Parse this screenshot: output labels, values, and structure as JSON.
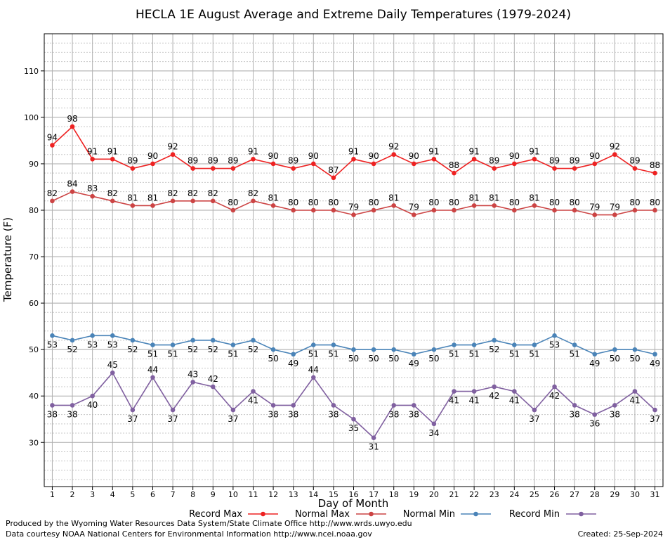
{
  "chart_data": {
    "type": "line",
    "title": "HECLA 1E August Average and Extreme Daily Temperatures (1979-2024)",
    "xlabel": "Day of Month",
    "ylabel": "Temperature (F)",
    "xlim": [
      0.6,
      31.4
    ],
    "ylim": [
      20.5,
      118
    ],
    "y_ticks": [
      30,
      40,
      50,
      60,
      70,
      80,
      90,
      100,
      110
    ],
    "x": [
      1,
      2,
      3,
      4,
      5,
      6,
      7,
      8,
      9,
      10,
      11,
      12,
      13,
      14,
      15,
      16,
      17,
      18,
      19,
      20,
      21,
      22,
      23,
      24,
      25,
      26,
      27,
      28,
      29,
      30,
      31
    ],
    "grid": true,
    "legend_position": "bottom",
    "series": [
      {
        "name": "Record Max",
        "color": "#ee2222",
        "label_position": "above",
        "values": [
          94,
          98,
          91,
          91,
          89,
          90,
          92,
          89,
          89,
          89,
          91,
          90,
          89,
          90,
          87,
          91,
          90,
          92,
          90,
          91,
          88,
          91,
          89,
          90,
          91,
          89,
          89,
          90,
          92,
          89,
          88
        ]
      },
      {
        "name": "Normal Max",
        "color": "#cc4444",
        "label_position": "above",
        "values": [
          82,
          84,
          83,
          82,
          81,
          81,
          82,
          82,
          82,
          80,
          82,
          81,
          80,
          80,
          80,
          79,
          80,
          81,
          79,
          80,
          80,
          81,
          81,
          80,
          81,
          80,
          80,
          79,
          79,
          80,
          80
        ]
      },
      {
        "name": "Normal Min",
        "color": "#4a84b8",
        "label_position": "below",
        "values": [
          53,
          52,
          53,
          53,
          52,
          51,
          51,
          52,
          52,
          51,
          52,
          50,
          49,
          51,
          51,
          50,
          50,
          50,
          49,
          50,
          51,
          51,
          52,
          51,
          51,
          53,
          51,
          49,
          50,
          50,
          49
        ]
      },
      {
        "name": "Record Min",
        "color": "#8060a0",
        "label_position": "mixed",
        "values": [
          38,
          38,
          40,
          45,
          37,
          44,
          37,
          43,
          42,
          37,
          41,
          38,
          38,
          44,
          38,
          35,
          31,
          38,
          38,
          34,
          41,
          41,
          42,
          41,
          37,
          42,
          38,
          36,
          38,
          41,
          37
        ],
        "label_above": [
          4,
          6,
          8,
          9,
          14
        ]
      }
    ]
  },
  "footer": {
    "produced_by": "Produced by the Wyoming Water Resources Data System/State Climate Office http://www.wrds.uwyo.edu",
    "courtesy": "Data courtesy NOAA National Centers for Environmental Information http://www.ncei.noaa.gov",
    "created": "Created:  25-Sep-2024"
  }
}
